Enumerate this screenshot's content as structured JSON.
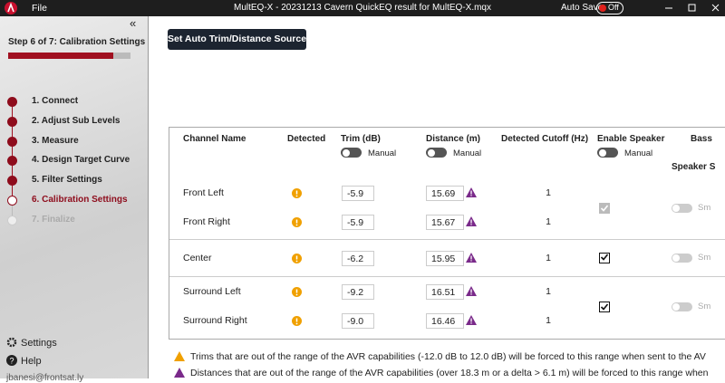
{
  "title_bar": {
    "menu": "File",
    "title": "MultEQ-X - 20231213 Cavern QuickEQ result for MultEQ-X.mqx",
    "auto_save": "Auto Save",
    "auto_save_state": "Off"
  },
  "sidebar": {
    "collapse": "«",
    "step_label": "Step 6 of 7: Calibration Settings",
    "steps": [
      {
        "label": "1. Connect",
        "state": "done"
      },
      {
        "label": "2. Adjust Sub Levels",
        "state": "done"
      },
      {
        "label": "3. Measure",
        "state": "done"
      },
      {
        "label": "4. Design Target Curve",
        "state": "done"
      },
      {
        "label": "5. Filter Settings",
        "state": "done"
      },
      {
        "label": "6. Calibration Settings",
        "state": "current"
      },
      {
        "label": "7. Finalize",
        "state": "pending"
      }
    ],
    "settings": "Settings",
    "help": "Help",
    "user": "jbanesi@frontsat.ly"
  },
  "main": {
    "button": "Set Auto Trim/Distance Source",
    "columns": {
      "channel": "Channel Name",
      "detected": "Detected",
      "trim": "Trim (dB)",
      "distance": "Distance  (m)",
      "cutoff": "Detected Cutoff (Hz)",
      "enable": "Enable Speaker",
      "bass": "Bass",
      "speaker": "Speaker S",
      "manual": "Manual"
    },
    "groups": [
      {
        "enabled": true,
        "disabled": true,
        "toggle": "Sm",
        "rows": [
          {
            "name": "Front Left",
            "trim": "-5.9",
            "distance": "15.69",
            "cutoff": 1
          },
          {
            "name": "Front Right",
            "trim": "-5.9",
            "distance": "15.67",
            "cutoff": 1
          }
        ]
      },
      {
        "enabled": true,
        "disabled": false,
        "toggle": "Sm",
        "rows": [
          {
            "name": "Center",
            "trim": "-6.2",
            "distance": "15.95",
            "cutoff": 1
          }
        ]
      },
      {
        "enabled": true,
        "disabled": false,
        "toggle": "Sm",
        "rows": [
          {
            "name": "Surround Left",
            "trim": "-9.2",
            "distance": "16.51",
            "cutoff": 1
          },
          {
            "name": "Surround Right",
            "trim": "-9.0",
            "distance": "16.46",
            "cutoff": 1
          }
        ]
      }
    ],
    "notes": {
      "trim": "Trims that are out of the range of the AVR capabilities (-12.0 dB to 12.0 dB) will be forced to this range when sent to the AV",
      "distance": "Distances that are out of the range of the AVR capabilities (over 18.3 m or a delta > 6.1 m) will be forced to this range when"
    }
  }
}
